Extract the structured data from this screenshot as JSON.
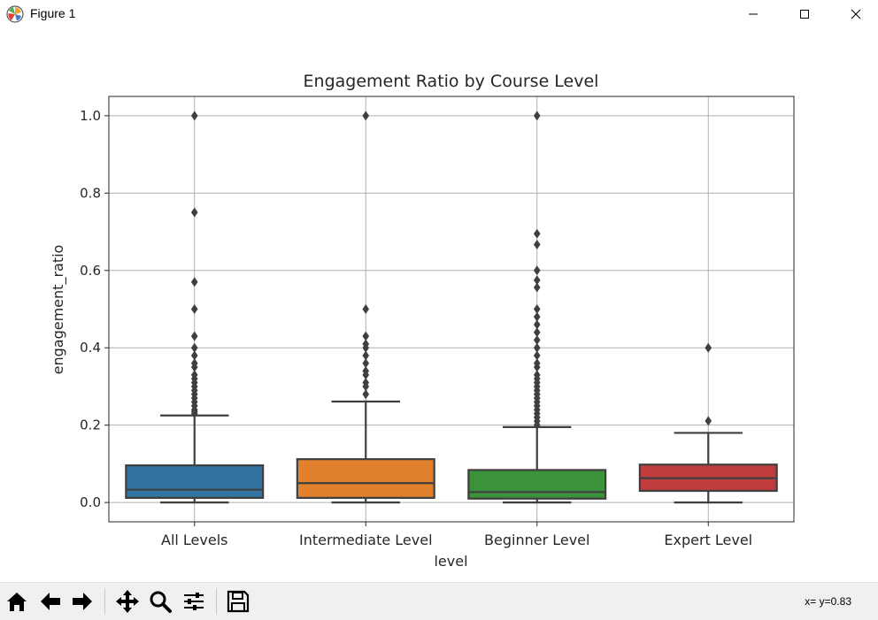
{
  "window": {
    "title": "Figure 1",
    "icons": {
      "app": "matplotlib-icon",
      "minimize": "minimize-icon",
      "maximize": "maximize-icon",
      "close": "close-icon"
    }
  },
  "toolbar": {
    "buttons": [
      {
        "name": "home-button",
        "icon": "home-icon"
      },
      {
        "name": "back-button",
        "icon": "arrow-left-icon"
      },
      {
        "name": "forward-button",
        "icon": "arrow-right-icon"
      },
      {
        "name": "pan-button",
        "icon": "move-icon"
      },
      {
        "name": "zoom-button",
        "icon": "search-icon"
      },
      {
        "name": "configure-subplots-button",
        "icon": "sliders-icon"
      },
      {
        "name": "save-button",
        "icon": "save-icon"
      }
    ],
    "coordinates": "x= y=0.83"
  },
  "chart_data": {
    "type": "box",
    "title": "Engagement Ratio by Course Level",
    "xlabel": "level",
    "ylabel": "engagement_ratio",
    "ylim": [
      -0.05,
      1.05
    ],
    "yticks": [
      0.0,
      0.2,
      0.4,
      0.6,
      0.8,
      1.0
    ],
    "ytick_labels": [
      "0.0",
      "0.2",
      "0.4",
      "0.6",
      "0.8",
      "1.0"
    ],
    "grid": true,
    "categories": [
      "All Levels",
      "Intermediate Level",
      "Beginner Level",
      "Expert Level"
    ],
    "boxes": [
      {
        "category": "All Levels",
        "color": "#3274a1",
        "whisker_low": 0.0,
        "q1": 0.012,
        "median": 0.033,
        "q3": 0.096,
        "whisker_high": 0.225,
        "outliers": [
          1.0,
          0.75,
          0.57,
          0.5,
          0.43,
          0.4,
          0.38,
          0.36,
          0.35,
          0.33,
          0.32,
          0.31,
          0.3,
          0.29,
          0.28,
          0.27,
          0.26,
          0.25,
          0.24,
          0.235,
          0.23
        ]
      },
      {
        "category": "Intermediate Level",
        "color": "#e1812c",
        "whisker_low": 0.0,
        "q1": 0.012,
        "median": 0.05,
        "q3": 0.112,
        "whisker_high": 0.261,
        "outliers": [
          1.0,
          0.5,
          0.43,
          0.41,
          0.4,
          0.38,
          0.36,
          0.34,
          0.33,
          0.31,
          0.3,
          0.28
        ]
      },
      {
        "category": "Beginner Level",
        "color": "#3a923a",
        "whisker_low": 0.0,
        "q1": 0.01,
        "median": 0.027,
        "q3": 0.084,
        "whisker_high": 0.195,
        "outliers": [
          1.0,
          0.695,
          0.667,
          0.6,
          0.575,
          0.556,
          0.5,
          0.48,
          0.46,
          0.44,
          0.42,
          0.4,
          0.38,
          0.36,
          0.35,
          0.33,
          0.32,
          0.31,
          0.3,
          0.29,
          0.28,
          0.27,
          0.26,
          0.25,
          0.24,
          0.23,
          0.22,
          0.21,
          0.2
        ]
      },
      {
        "category": "Expert Level",
        "color": "#c03d3e",
        "whisker_low": 0.0,
        "q1": 0.03,
        "median": 0.063,
        "q3": 0.098,
        "whisker_high": 0.18,
        "outliers": [
          0.4,
          0.211
        ]
      }
    ]
  }
}
